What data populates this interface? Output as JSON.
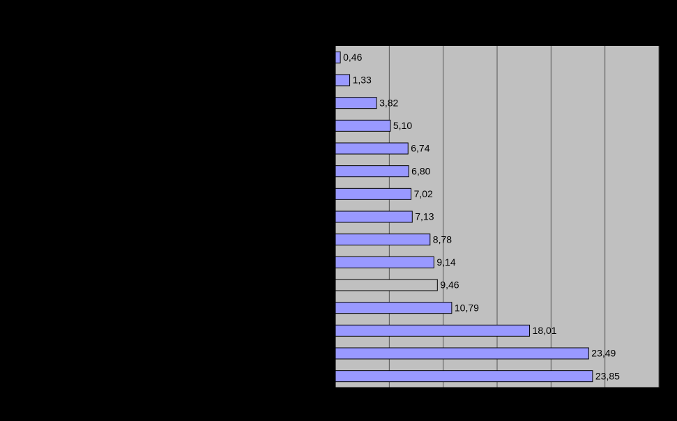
{
  "chart_data": {
    "type": "barh",
    "categories": [
      null,
      null,
      null,
      null,
      null,
      null,
      null,
      null,
      null,
      null,
      null,
      null,
      null,
      null,
      null
    ],
    "values": [
      0.46,
      1.33,
      3.82,
      5.1,
      6.74,
      6.8,
      7.02,
      7.13,
      8.78,
      9.14,
      9.46,
      10.79,
      18.01,
      23.49,
      23.85
    ],
    "value_labels": [
      "0,46",
      "1,33",
      "3,82",
      "5,10",
      "6,74",
      "6,80",
      "7,02",
      "7,13",
      "8,78",
      "9,14",
      "9,46",
      "10,79",
      "18,01",
      "23,49",
      "23,85"
    ],
    "colors": [
      "#9999ff",
      "#9999ff",
      "#9999ff",
      "#9999ff",
      "#9999ff",
      "#9999ff",
      "#9999ff",
      "#9999ff",
      "#9999ff",
      "#9999ff",
      "#c0c0c0",
      "#9999ff",
      "#9999ff",
      "#9999ff",
      "#9999ff"
    ],
    "xlim": [
      0,
      30
    ],
    "xticks": [
      0,
      5,
      10,
      15,
      20,
      25,
      30
    ],
    "grid": true
  }
}
